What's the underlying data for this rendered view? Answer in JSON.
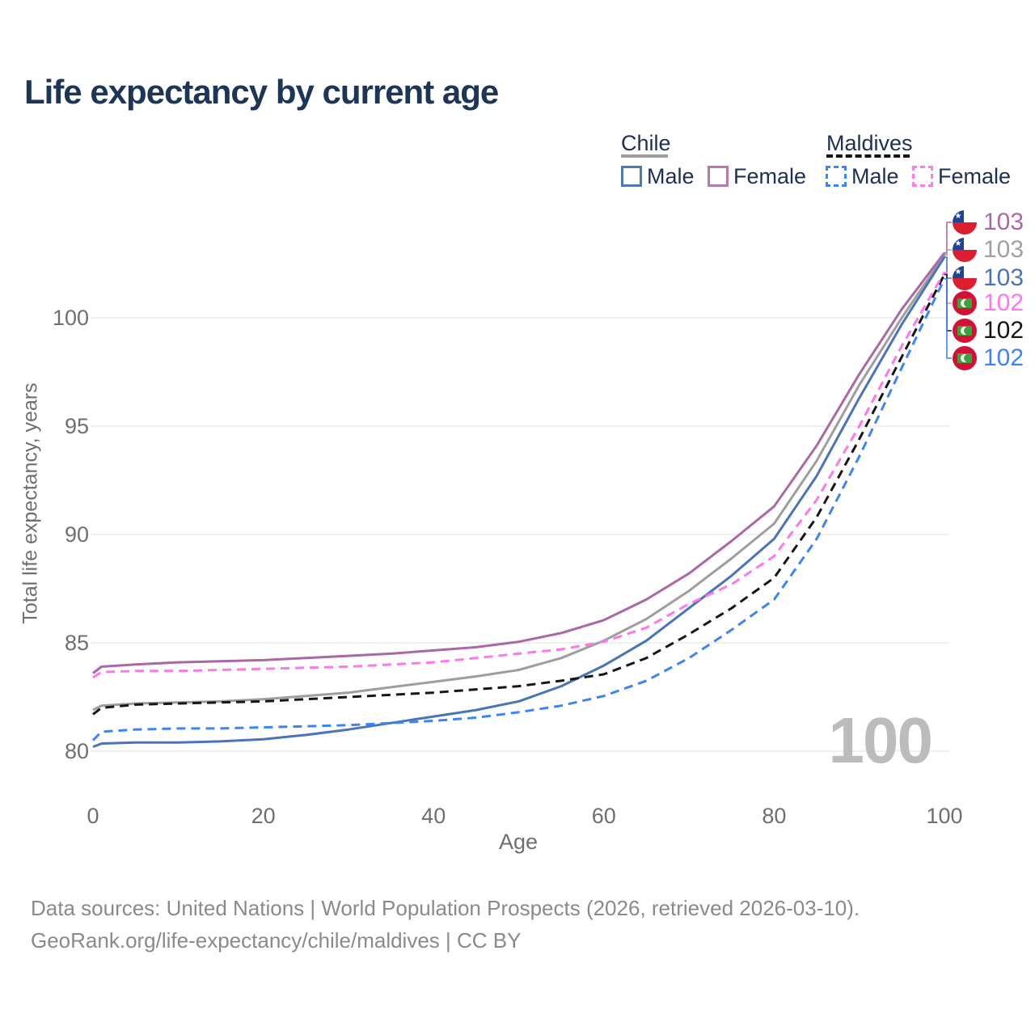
{
  "title": "Life expectancy by current age",
  "legend": {
    "groups": [
      {
        "label": "Chile",
        "line_style": "solid",
        "underline_color": "#9e9e9e",
        "items": [
          {
            "label": "Male",
            "color": "#4e79b6",
            "dashed": false
          },
          {
            "label": "Female",
            "color": "#b579ae",
            "dashed": false
          }
        ]
      },
      {
        "label": "Maldives",
        "line_style": "dashed",
        "underline_color": "#141414",
        "items": [
          {
            "label": "Male",
            "color": "#3c85f4",
            "dashed": true
          },
          {
            "label": "Female",
            "color": "#ff7bee",
            "dashed": true
          }
        ]
      }
    ]
  },
  "chart_data": {
    "type": "line",
    "title": "Life expectancy by current age",
    "xlabel": "Age",
    "ylabel": "Total life expectancy, years",
    "xlim": [
      0,
      100
    ],
    "ylim": [
      78.5,
      103.5
    ],
    "xticks": [
      0,
      20,
      40,
      60,
      80,
      100
    ],
    "yticks": [
      80,
      85,
      90,
      95,
      100
    ],
    "grid": "horizontal",
    "legend_position": "top-right",
    "x": [
      0,
      1,
      5,
      10,
      15,
      20,
      25,
      30,
      35,
      40,
      45,
      50,
      55,
      60,
      65,
      70,
      75,
      80,
      85,
      90,
      95,
      100
    ],
    "series": [
      {
        "name": "Chile Female",
        "country": "Chile",
        "sex": "Female",
        "style": "solid",
        "color": "#ab68a6",
        "values": [
          83.6,
          83.9,
          84.0,
          84.1,
          84.15,
          84.2,
          84.3,
          84.4,
          84.5,
          84.65,
          84.8,
          85.05,
          85.45,
          86.05,
          87.0,
          88.2,
          89.7,
          91.3,
          94.1,
          97.4,
          100.4,
          103.0
        ]
      },
      {
        "name": "Chile Both sexes",
        "country": "Chile",
        "sex": "Both",
        "style": "solid",
        "color": "#9e9e9e",
        "values": [
          81.9,
          82.1,
          82.2,
          82.25,
          82.3,
          82.4,
          82.55,
          82.7,
          82.95,
          83.2,
          83.45,
          83.75,
          84.3,
          85.1,
          86.1,
          87.4,
          88.9,
          90.5,
          93.4,
          96.9,
          100.0,
          102.9
        ]
      },
      {
        "name": "Chile Male",
        "country": "Chile",
        "sex": "Male",
        "style": "solid",
        "color": "#4a74b8",
        "values": [
          80.2,
          80.35,
          80.4,
          80.4,
          80.45,
          80.55,
          80.75,
          81.0,
          81.3,
          81.6,
          81.9,
          82.3,
          83.0,
          83.95,
          85.1,
          86.6,
          88.1,
          89.8,
          92.7,
          96.3,
          99.7,
          102.8
        ]
      },
      {
        "name": "Maldives Female",
        "country": "Maldives",
        "sex": "Female",
        "style": "dashed",
        "color": "#ff77ee",
        "values": [
          83.4,
          83.65,
          83.7,
          83.7,
          83.75,
          83.8,
          83.85,
          83.9,
          84.0,
          84.1,
          84.3,
          84.5,
          84.7,
          85.05,
          85.7,
          86.8,
          87.7,
          89.0,
          91.6,
          95.0,
          98.7,
          102.1
        ]
      },
      {
        "name": "Maldives Both sexes",
        "country": "Maldives",
        "sex": "Both",
        "style": "dashed",
        "color": "#161616",
        "values": [
          81.7,
          82.0,
          82.15,
          82.2,
          82.25,
          82.3,
          82.4,
          82.5,
          82.6,
          82.7,
          82.85,
          83.0,
          83.25,
          83.55,
          84.3,
          85.4,
          86.6,
          88.0,
          90.8,
          94.4,
          98.2,
          102.0
        ]
      },
      {
        "name": "Maldives Male",
        "country": "Maldives",
        "sex": "Male",
        "style": "dashed",
        "color": "#3c85f4",
        "values": [
          80.5,
          80.9,
          81.0,
          81.05,
          81.05,
          81.1,
          81.15,
          81.2,
          81.3,
          81.4,
          81.55,
          81.8,
          82.1,
          82.55,
          83.25,
          84.3,
          85.6,
          87.0,
          89.8,
          93.6,
          97.7,
          101.8
        ]
      }
    ]
  },
  "end_labels": [
    {
      "value": "103",
      "flag": "chile",
      "color": "#ab68a6"
    },
    {
      "value": "103",
      "flag": "chile",
      "color": "#a0a0a0"
    },
    {
      "value": "103",
      "flag": "chile",
      "color": "#4a74b8"
    },
    {
      "value": "102",
      "flag": "maldives",
      "color": "#ff77ee"
    },
    {
      "value": "102",
      "flag": "maldives",
      "color": "#141414"
    },
    {
      "value": "102",
      "flag": "maldives",
      "color": "#3c85f4"
    }
  ],
  "watermark": "100",
  "footer": {
    "line1": "Data sources: United Nations | World Population Prospects (2026, retrieved 2026-03-10).",
    "line2": "GeoRank.org/life-expectancy/chile/maldives | CC BY"
  },
  "icons": {
    "chile_flag": {
      "blue": "#1f4396",
      "red": "#dc1f2e",
      "star": "★"
    },
    "maldives_flag": {
      "red": "#d21038",
      "green": "#3ba33b"
    }
  },
  "theme": {
    "title_color": "#1d3557",
    "grid_color": "#ebebeb",
    "tick_color": "#6f6f6f",
    "watermark_color": "#bcbcbc"
  }
}
